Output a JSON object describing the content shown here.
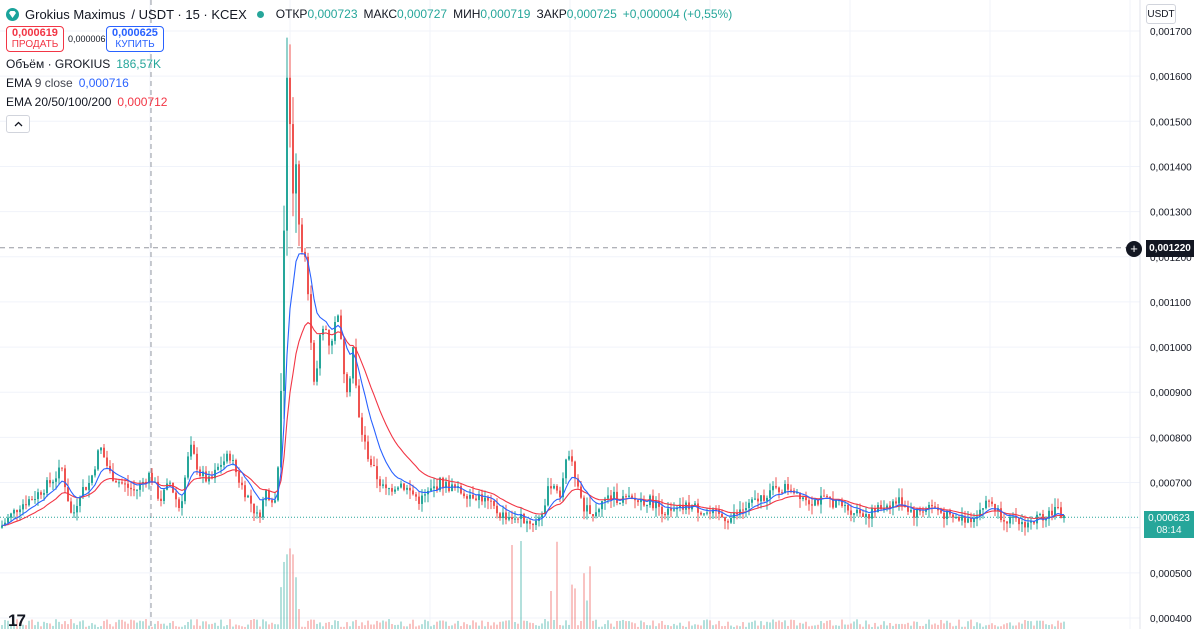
{
  "header": {
    "symbol": "Grokius Maximus",
    "pair_rest": "/ USDT · 15 · KCEX",
    "open_key": "ОТКР",
    "open_val": "0,000723",
    "high_key": "МАКС",
    "high_val": "0,000727",
    "low_key": "МИН",
    "low_val": "0,000719",
    "close_key": "ЗАКР",
    "close_val": "0,000725",
    "change": "+0,000004 (+0,55%)"
  },
  "trade": {
    "sell_price": "0,000619",
    "sell_label": "ПРОДАТЬ",
    "spread": "0,000006",
    "buy_price": "0,000625",
    "buy_label": "КУПИТЬ"
  },
  "indicators": {
    "volume_label": "Объём · GROKIUS",
    "volume_value": "186,57K",
    "ema9_label": "EMA",
    "ema9_params": "9 close",
    "ema9_value": "0,000716",
    "ema_multi_label": "EMA 20/50/100/200",
    "ema_multi_value": "0,000712"
  },
  "price_axis": {
    "currency": "USDT",
    "crosshair_price": "0,001220",
    "last_price": "0,000623",
    "countdown": "08:14"
  },
  "colors": {
    "up": "#26a69a",
    "down": "#ef5350",
    "ema9": "#2962ff",
    "ema20": "#f23645"
  },
  "chart_data": {
    "type": "candlestick",
    "y_ticks": [
      "0,001700",
      "0,001600",
      "0,001500",
      "0,001400",
      "0,001300",
      "0,001200",
      "0,001100",
      "0,001000",
      "0,000900",
      "0,000800",
      "0,000700",
      "0,000600",
      "0,000500",
      "0,000400"
    ],
    "y_tick_values": [
      0.0017,
      0.0016,
      0.0015,
      0.0014,
      0.0013,
      0.0012,
      0.0011,
      0.001,
      0.0009,
      0.0008,
      0.0007,
      0.0006,
      0.0005,
      0.0004
    ],
    "ylim": [
      0.00039,
      0.001745
    ],
    "crosshair_value": 0.00122,
    "last_value": 0.000623,
    "price_path": [
      [
        0,
        0.0006
      ],
      [
        8,
        0.00062
      ],
      [
        20,
        0.00065
      ],
      [
        35,
        0.00067
      ],
      [
        50,
        0.0007
      ],
      [
        62,
        0.00073
      ],
      [
        72,
        0.00062
      ],
      [
        80,
        0.00068
      ],
      [
        90,
        0.0007
      ],
      [
        100,
        0.00078
      ],
      [
        110,
        0.00072
      ],
      [
        120,
        0.0007
      ],
      [
        135,
        0.00068
      ],
      [
        150,
        0.00072
      ],
      [
        160,
        0.00066
      ],
      [
        170,
        0.0007
      ],
      [
        180,
        0.00064
      ],
      [
        190,
        0.00078
      ],
      [
        200,
        0.00072
      ],
      [
        210,
        0.0007
      ],
      [
        220,
        0.00074
      ],
      [
        230,
        0.00076
      ],
      [
        240,
        0.0007
      ],
      [
        250,
        0.00066
      ],
      [
        258,
        0.00062
      ],
      [
        266,
        0.00068
      ],
      [
        275,
        0.00066
      ],
      [
        280,
        0.0008
      ],
      [
        284,
        0.00125
      ],
      [
        287,
        0.0016
      ],
      [
        290,
        0.0015
      ],
      [
        293,
        0.00135
      ],
      [
        296,
        0.0014
      ],
      [
        300,
        0.00122
      ],
      [
        305,
        0.0012
      ],
      [
        310,
        0.00105
      ],
      [
        315,
        0.0009
      ],
      [
        320,
        0.00102
      ],
      [
        325,
        0.00105
      ],
      [
        330,
        0.001
      ],
      [
        338,
        0.00108
      ],
      [
        343,
        0.00096
      ],
      [
        348,
        0.0009
      ],
      [
        353,
        0.001
      ],
      [
        358,
        0.00085
      ],
      [
        363,
        0.0008
      ],
      [
        368,
        0.00076
      ],
      [
        375,
        0.00072
      ],
      [
        385,
        0.00068
      ],
      [
        400,
        0.0007
      ],
      [
        420,
        0.00066
      ],
      [
        440,
        0.0007
      ],
      [
        460,
        0.00068
      ],
      [
        480,
        0.00067
      ],
      [
        500,
        0.00063
      ],
      [
        520,
        0.00062
      ],
      [
        535,
        0.00061
      ],
      [
        545,
        0.00065
      ],
      [
        550,
        0.0007
      ],
      [
        560,
        0.00068
      ],
      [
        570,
        0.00078
      ],
      [
        580,
        0.00066
      ],
      [
        590,
        0.00063
      ],
      [
        610,
        0.00067
      ],
      [
        630,
        0.00066
      ],
      [
        650,
        0.00066
      ],
      [
        670,
        0.00063
      ],
      [
        690,
        0.00065
      ],
      [
        710,
        0.00063
      ],
      [
        730,
        0.00062
      ],
      [
        750,
        0.00065
      ],
      [
        770,
        0.00068
      ],
      [
        790,
        0.00069
      ],
      [
        810,
        0.00066
      ],
      [
        830,
        0.00066
      ],
      [
        850,
        0.00064
      ],
      [
        870,
        0.00063
      ],
      [
        885,
        0.00065
      ],
      [
        900,
        0.00066
      ],
      [
        915,
        0.00063
      ],
      [
        930,
        0.00065
      ],
      [
        950,
        0.00062
      ],
      [
        970,
        0.00062
      ],
      [
        990,
        0.00066
      ],
      [
        1000,
        0.00063
      ],
      [
        1015,
        0.00061
      ],
      [
        1030,
        0.00061
      ],
      [
        1045,
        0.00063
      ],
      [
        1055,
        0.00064
      ],
      [
        1065,
        0.000623
      ]
    ]
  }
}
